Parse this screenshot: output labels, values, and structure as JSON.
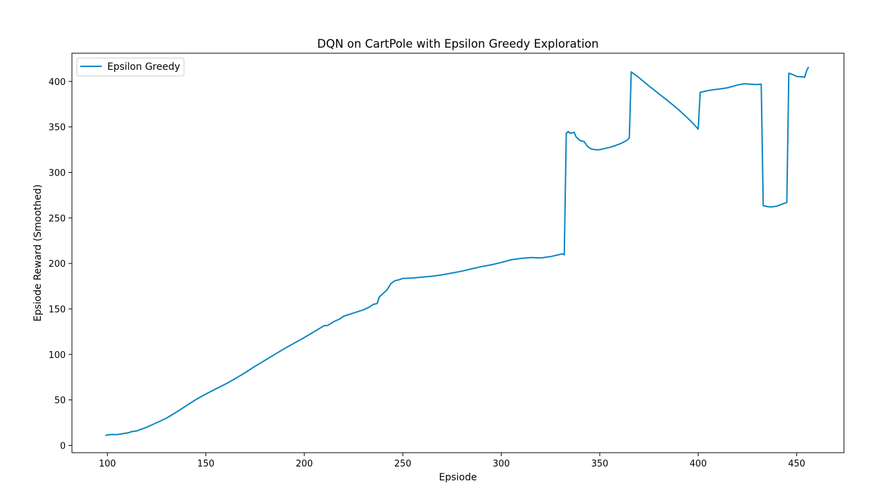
{
  "chart_data": {
    "type": "line",
    "title": "DQN on CartPole with Epsilon Greedy Exploration",
    "xlabel": "Epsiode",
    "ylabel": "Epsiode Reward (Smoothed)",
    "xlim": [
      82,
      474
    ],
    "ylim": [
      -8,
      431
    ],
    "xticks": [
      100,
      150,
      200,
      250,
      300,
      350,
      400,
      450
    ],
    "yticks": [
      0,
      50,
      100,
      150,
      200,
      250,
      300,
      350,
      400
    ],
    "grid": false,
    "legend_position": "upper left",
    "series": [
      {
        "name": "Epsilon Greedy",
        "color": "#0a84c0",
        "points": [
          [
            99,
            11
          ],
          [
            100,
            11.5
          ],
          [
            102,
            12
          ],
          [
            105,
            12
          ],
          [
            108,
            13
          ],
          [
            111,
            14
          ],
          [
            112,
            15
          ],
          [
            115,
            16
          ],
          [
            120,
            20
          ],
          [
            125,
            25
          ],
          [
            130,
            30
          ],
          [
            135,
            36.5
          ],
          [
            140,
            43.5
          ],
          [
            145,
            50.5
          ],
          [
            150,
            56.5
          ],
          [
            155,
            62
          ],
          [
            160,
            67.5
          ],
          [
            165,
            73.5
          ],
          [
            170,
            80
          ],
          [
            175,
            87
          ],
          [
            180,
            93.5
          ],
          [
            185,
            100
          ],
          [
            190,
            106.5
          ],
          [
            195,
            112.5
          ],
          [
            200,
            118.5
          ],
          [
            205,
            125
          ],
          [
            210,
            131.5
          ],
          [
            212,
            132
          ],
          [
            215,
            136
          ],
          [
            218,
            139
          ],
          [
            220,
            142
          ],
          [
            225,
            145.5
          ],
          [
            230,
            149
          ],
          [
            233,
            152
          ],
          [
            235,
            155
          ],
          [
            237,
            156
          ],
          [
            238,
            163
          ],
          [
            240,
            167
          ],
          [
            242,
            171
          ],
          [
            244,
            178
          ],
          [
            246,
            181
          ],
          [
            248,
            182
          ],
          [
            250,
            183.5
          ],
          [
            255,
            184
          ],
          [
            260,
            185
          ],
          [
            265,
            186
          ],
          [
            270,
            187.5
          ],
          [
            275,
            189.5
          ],
          [
            280,
            191.5
          ],
          [
            285,
            194
          ],
          [
            290,
            196.5
          ],
          [
            295,
            198.5
          ],
          [
            300,
            201
          ],
          [
            305,
            204
          ],
          [
            310,
            205.5
          ],
          [
            315,
            206.5
          ],
          [
            320,
            206
          ],
          [
            325,
            207.5
          ],
          [
            330,
            210
          ],
          [
            331,
            210.5
          ],
          [
            332,
            209.5
          ],
          [
            333,
            343
          ],
          [
            334,
            345
          ],
          [
            335,
            343
          ],
          [
            337,
            344
          ],
          [
            338,
            339
          ],
          [
            340,
            335
          ],
          [
            342,
            334
          ],
          [
            344,
            328
          ],
          [
            346,
            325.5
          ],
          [
            348,
            325
          ],
          [
            350,
            325
          ],
          [
            352,
            326
          ],
          [
            355,
            327.5
          ],
          [
            358,
            329.5
          ],
          [
            361,
            332
          ],
          [
            364,
            335.5
          ],
          [
            365,
            338
          ],
          [
            366,
            410.5
          ],
          [
            370,
            404
          ],
          [
            375,
            395
          ],
          [
            380,
            386.5
          ],
          [
            385,
            378
          ],
          [
            390,
            369
          ],
          [
            395,
            359
          ],
          [
            398,
            352.5
          ],
          [
            400,
            347.5
          ],
          [
            401,
            388
          ],
          [
            404,
            389.5
          ],
          [
            408,
            391
          ],
          [
            412,
            392
          ],
          [
            415,
            393
          ],
          [
            419,
            395.5
          ],
          [
            422,
            397
          ],
          [
            424,
            397.5
          ],
          [
            426,
            397
          ],
          [
            430,
            396.5
          ],
          [
            432,
            397
          ],
          [
            433,
            263.5
          ],
          [
            435,
            262.5
          ],
          [
            437,
            262
          ],
          [
            440,
            263
          ],
          [
            443,
            265.5
          ],
          [
            445,
            267
          ],
          [
            446,
            409
          ],
          [
            448,
            407.5
          ],
          [
            450,
            405.5
          ],
          [
            453,
            405
          ],
          [
            454,
            404.5
          ],
          [
            455,
            411.5
          ],
          [
            456,
            416
          ]
        ]
      }
    ]
  }
}
